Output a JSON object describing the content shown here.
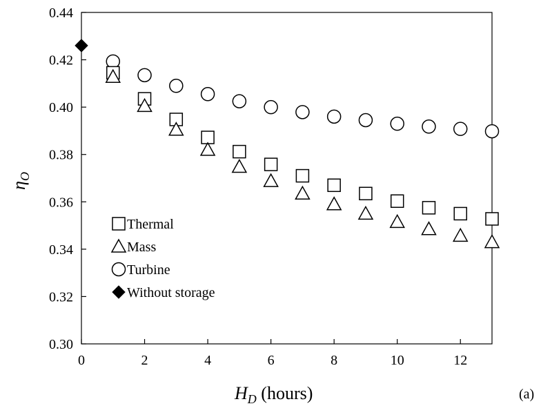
{
  "chart_data": {
    "type": "scatter",
    "xlabel": {
      "symbol": "H",
      "subscript": "D",
      "unit": " (hours)"
    },
    "ylabel": {
      "symbol": "η",
      "subscript": "O"
    },
    "xlim": [
      0,
      13
    ],
    "ylim": [
      0.3,
      0.44
    ],
    "xticks": [
      0,
      2,
      4,
      6,
      8,
      10,
      12
    ],
    "xtick_labels": [
      "0",
      "2",
      "4",
      "6",
      "8",
      "10",
      "12"
    ],
    "yticks": [
      0.3,
      0.32,
      0.34,
      0.36,
      0.38,
      0.4,
      0.42,
      0.44
    ],
    "ytick_labels": [
      "0.30",
      "0.32",
      "0.34",
      "0.36",
      "0.38",
      "0.40",
      "0.42",
      "0.44"
    ],
    "grid": false,
    "legend_position": "lower-left",
    "panel_label": "(a)",
    "series": [
      {
        "name": "Thermal",
        "marker": "square",
        "x": [
          1,
          2,
          3,
          4,
          5,
          6,
          7,
          8,
          9,
          10,
          11,
          12,
          13
        ],
        "y": [
          0.4145,
          0.4035,
          0.3948,
          0.3872,
          0.3812,
          0.3758,
          0.371,
          0.367,
          0.3635,
          0.3603,
          0.3575,
          0.355,
          0.3528
        ]
      },
      {
        "name": "Mass",
        "marker": "triangle",
        "x": [
          1,
          2,
          3,
          4,
          5,
          6,
          7,
          8,
          9,
          10,
          11,
          12,
          13
        ],
        "y": [
          0.4128,
          0.4005,
          0.3905,
          0.382,
          0.3748,
          0.3688,
          0.3635,
          0.359,
          0.355,
          0.3515,
          0.3485,
          0.3457,
          0.343
        ]
      },
      {
        "name": "Turbine",
        "marker": "circle",
        "x": [
          1,
          2,
          3,
          4,
          5,
          6,
          7,
          8,
          9,
          10,
          11,
          12,
          13
        ],
        "y": [
          0.4193,
          0.4135,
          0.409,
          0.4055,
          0.4025,
          0.4,
          0.3979,
          0.396,
          0.3945,
          0.393,
          0.3918,
          0.3908,
          0.3898
        ]
      },
      {
        "name": "Without storage",
        "marker": "diamond-filled",
        "x": [
          0
        ],
        "y": [
          0.426
        ]
      }
    ]
  }
}
